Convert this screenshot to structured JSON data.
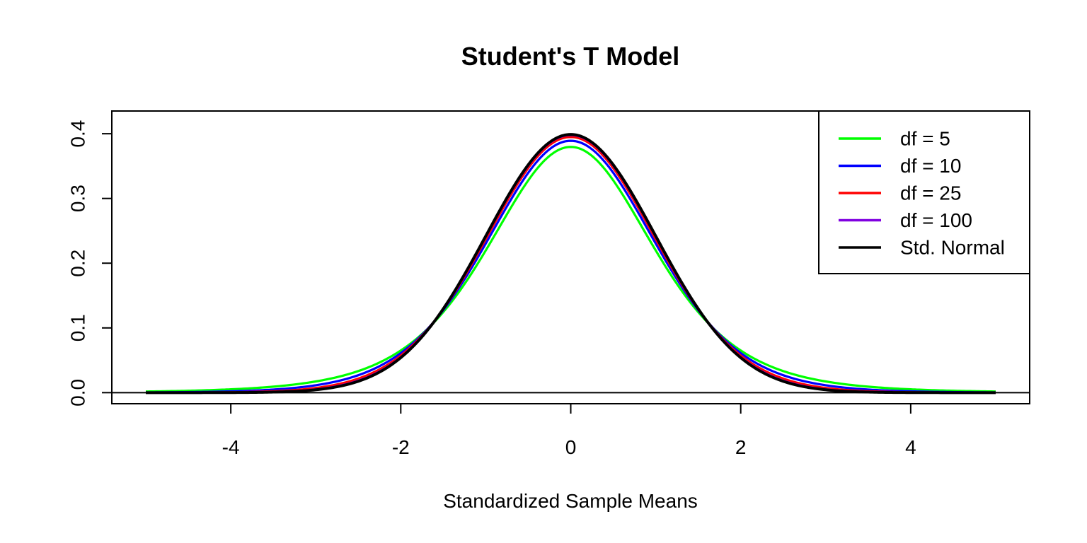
{
  "chart_data": {
    "type": "line",
    "title": "Student's T Model",
    "xlabel": "Standardized Sample Means",
    "ylabel": "",
    "xlim": [
      -5.4,
      5.4
    ],
    "ylim": [
      -0.0171,
      0.4351
    ],
    "x_range": [
      -5,
      5
    ],
    "xticks": [
      -4,
      -2,
      0,
      2,
      4
    ],
    "xtick_labels": [
      "-4",
      "-2",
      "0",
      "2",
      "4"
    ],
    "yticks": [
      0.0,
      0.1,
      0.2,
      0.3,
      0.4
    ],
    "ytick_labels": [
      "0.0",
      "0.1",
      "0.2",
      "0.3",
      "0.4"
    ],
    "hline_y": 0,
    "grid": false,
    "legend_position": "top-right",
    "series": [
      {
        "name": "df = 5",
        "distribution": "t",
        "df": 5,
        "color": "#00ff00"
      },
      {
        "name": "df = 10",
        "distribution": "t",
        "df": 10,
        "color": "#0000ff"
      },
      {
        "name": "df = 25",
        "distribution": "t",
        "df": 25,
        "color": "#ff0000"
      },
      {
        "name": "df = 100",
        "distribution": "t",
        "df": 100,
        "color": "#8000e0"
      },
      {
        "name": "Std. Normal",
        "distribution": "normal",
        "df": null,
        "color": "#000000"
      }
    ]
  }
}
